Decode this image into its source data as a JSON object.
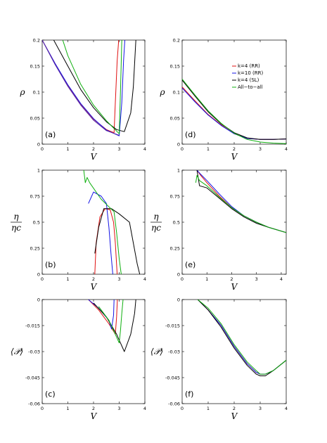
{
  "colors": {
    "red": "#e01010",
    "blue": "#1414e6",
    "black": "#000000",
    "green": "#10b010"
  },
  "legend": [
    {
      "label": "k=4 (RR)",
      "color": "#e01010"
    },
    {
      "label": "k=10 (RR)",
      "color": "#1414e6"
    },
    {
      "label": "k=4 (SL)",
      "color": "#000000"
    },
    {
      "label": "All−to−all",
      "color": "#10b010"
    }
  ],
  "chart_data": [
    {
      "type": "line",
      "panel_label": "(a)",
      "xlabel": "V",
      "ylabel": "ρ",
      "xlim": [
        0,
        4
      ],
      "ylim": [
        0,
        0.2
      ],
      "xticks": [
        "0",
        "1",
        "2",
        "3",
        "4"
      ],
      "yticks": [
        "0",
        "0.05",
        "0.1",
        "0.15",
        "0.2"
      ],
      "series": [
        {
          "color": "#e01010",
          "x": [
            0,
            0.5,
            1,
            1.5,
            2,
            2.5,
            2.8,
            2.85,
            2.92,
            2.98
          ],
          "y": [
            0.2,
            0.155,
            0.113,
            0.077,
            0.048,
            0.028,
            0.022,
            0.08,
            0.16,
            0.2
          ]
        },
        {
          "color": "#1414e6",
          "x": [
            0,
            0.5,
            1,
            1.5,
            2,
            2.5,
            3.0,
            3.1,
            3.17,
            3.22
          ],
          "y": [
            0.2,
            0.155,
            0.114,
            0.078,
            0.049,
            0.027,
            0.016,
            0.08,
            0.16,
            0.2
          ]
        },
        {
          "color": "#000000",
          "x": [
            0.45,
            1,
            1.5,
            2,
            2.5,
            2.9,
            3.2,
            3.45,
            3.55,
            3.65
          ],
          "y": [
            0.2,
            0.15,
            0.105,
            0.07,
            0.043,
            0.028,
            0.024,
            0.06,
            0.11,
            0.2
          ]
        },
        {
          "color": "#10b010",
          "x": [
            0.8,
            1,
            1.5,
            2,
            2.5,
            2.8,
            3.0,
            3.05,
            3.1
          ],
          "y": [
            0.2,
            0.17,
            0.115,
            0.075,
            0.045,
            0.03,
            0.02,
            0.1,
            0.2
          ]
        },
        {
          "color": "#5a2aa8",
          "x": [
            0,
            0.5,
            1,
            1.5,
            2,
            2.5,
            3.0
          ],
          "y": [
            0.2,
            0.153,
            0.111,
            0.075,
            0.046,
            0.026,
            0.017
          ]
        }
      ]
    },
    {
      "type": "line",
      "panel_label": "(d)",
      "xlabel": "V",
      "ylabel": "ρ",
      "xlim": [
        0,
        4
      ],
      "ylim": [
        0,
        0.2
      ],
      "xticks": [
        "0",
        "1",
        "2",
        "3",
        "4"
      ],
      "yticks": [
        "0",
        "0.05",
        "0.1",
        "0.15",
        "0.2"
      ],
      "series": [
        {
          "color": "#e01010",
          "x": [
            0,
            0.5,
            1,
            1.5,
            2,
            2.5,
            3,
            3.5,
            4
          ],
          "y": [
            0.11,
            0.083,
            0.057,
            0.037,
            0.02,
            0.011,
            0.009,
            0.009,
            0.01
          ]
        },
        {
          "color": "#1414e6",
          "x": [
            0,
            0.5,
            1,
            1.5,
            2,
            2.5,
            3,
            3.5,
            4
          ],
          "y": [
            0.108,
            0.081,
            0.056,
            0.036,
            0.02,
            0.011,
            0.009,
            0.009,
            0.01
          ]
        },
        {
          "color": "#000000",
          "x": [
            0,
            0.5,
            1,
            1.5,
            2,
            2.5,
            3,
            3.5,
            4
          ],
          "y": [
            0.123,
            0.092,
            0.062,
            0.039,
            0.022,
            0.012,
            0.009,
            0.009,
            0.01
          ]
        },
        {
          "color": "#10b010",
          "x": [
            0,
            0.5,
            1,
            1.5,
            2,
            2.5,
            3,
            3.5,
            4
          ],
          "y": [
            0.125,
            0.094,
            0.064,
            0.04,
            0.021,
            0.009,
            0.004,
            0.002,
            0.001
          ]
        }
      ]
    },
    {
      "type": "line",
      "panel_label": "(b)",
      "xlabel": "V",
      "ylabel": "η / ηc",
      "xlim": [
        0,
        4
      ],
      "ylim": [
        0,
        1
      ],
      "xticks": [
        "0",
        "1",
        "2",
        "3",
        "4"
      ],
      "yticks": [
        "0",
        "0.25",
        "0.5",
        "0.75",
        "1"
      ],
      "series": [
        {
          "color": "#e01010",
          "x": [
            2.05,
            2.1,
            2.25,
            2.45,
            2.65,
            2.78,
            2.85,
            2.92
          ],
          "y": [
            0,
            0.3,
            0.55,
            0.63,
            0.62,
            0.5,
            0.3,
            0
          ]
        },
        {
          "color": "#1414e6",
          "x": [
            1.8,
            2.0,
            2.3,
            2.5,
            2.6,
            2.68,
            2.75
          ],
          "y": [
            0.68,
            0.79,
            0.75,
            0.68,
            0.45,
            0.2,
            0
          ]
        },
        {
          "color": "#000000",
          "x": [
            2.05,
            2.2,
            2.4,
            2.7,
            3.0,
            3.4,
            3.55,
            3.7,
            3.8
          ],
          "y": [
            0.2,
            0.45,
            0.63,
            0.63,
            0.58,
            0.5,
            0.3,
            0.1,
            0
          ]
        },
        {
          "color": "#10b010",
          "x": [
            1.62,
            1.68,
            1.75,
            1.85,
            2.3,
            2.8,
            2.9,
            3.0,
            3.08
          ],
          "y": [
            1.0,
            0.88,
            0.93,
            0.88,
            0.72,
            0.6,
            0.4,
            0.15,
            0
          ]
        }
      ]
    },
    {
      "type": "line",
      "panel_label": "(e)",
      "xlabel": "V",
      "ylabel": "η / ηc",
      "xlim": [
        0,
        4.2
      ],
      "ylim": [
        0,
        1
      ],
      "xticks": [
        "0",
        "1",
        "2",
        "3",
        "4"
      ],
      "yticks": [
        "0",
        "0.25",
        "0.5",
        "0.75",
        "1"
      ],
      "series": [
        {
          "color": "#e01010",
          "x": [
            0.6,
            0.75,
            1,
            1.5,
            2,
            2.5,
            3,
            3.5,
            4.2
          ],
          "y": [
            1.0,
            0.95,
            0.88,
            0.75,
            0.64,
            0.56,
            0.5,
            0.45,
            0.4
          ]
        },
        {
          "color": "#1414e6",
          "x": [
            0.6,
            0.75,
            1,
            1.5,
            2,
            2.5,
            3,
            3.5,
            4.2
          ],
          "y": [
            1.0,
            0.96,
            0.9,
            0.77,
            0.65,
            0.56,
            0.5,
            0.45,
            0.4
          ]
        },
        {
          "color": "#000000",
          "x": [
            0.6,
            0.7,
            1,
            1.5,
            2,
            2.5,
            3,
            3.5,
            4.2
          ],
          "y": [
            1.0,
            0.85,
            0.83,
            0.73,
            0.63,
            0.55,
            0.49,
            0.45,
            0.4
          ]
        },
        {
          "color": "#10b010",
          "x": [
            0.55,
            0.6,
            0.7,
            1,
            1.5,
            2,
            2.5,
            3,
            3.5,
            4.2
          ],
          "y": [
            0.88,
            0.95,
            0.9,
            0.85,
            0.74,
            0.64,
            0.56,
            0.5,
            0.45,
            0.4
          ]
        }
      ]
    },
    {
      "type": "line",
      "panel_label": "(c)",
      "xlabel": "V",
      "ylabel": "⟨𝒫⟩",
      "xlim": [
        0,
        4
      ],
      "ylim": [
        -0.06,
        0
      ],
      "xticks": [
        "0",
        "1",
        "2",
        "3",
        "4"
      ],
      "yticks": [
        "-0.06",
        "-0.045",
        "-0.03",
        "-0.015",
        "0"
      ],
      "series": [
        {
          "color": "#e01010",
          "x": [
            1.8,
            2.2,
            2.6,
            2.85,
            2.9,
            2.93
          ],
          "y": [
            0,
            -0.006,
            -0.014,
            -0.02,
            -0.01,
            0
          ]
        },
        {
          "color": "#1414e6",
          "x": [
            1.8,
            2.2,
            2.6,
            2.7,
            2.78,
            2.8
          ],
          "y": [
            0,
            -0.005,
            -0.012,
            -0.017,
            -0.009,
            0
          ]
        },
        {
          "color": "#000000",
          "x": [
            2.0,
            2.5,
            2.9,
            3.2,
            3.45,
            3.6,
            3.65
          ],
          "y": [
            -0.002,
            -0.01,
            -0.02,
            -0.03,
            -0.02,
            -0.008,
            0
          ]
        },
        {
          "color": "#10b010",
          "x": [
            2.2,
            2.6,
            3.0,
            3.05,
            3.1,
            3.15
          ],
          "y": [
            -0.004,
            -0.012,
            -0.025,
            -0.018,
            -0.008,
            0
          ]
        }
      ]
    },
    {
      "type": "line",
      "panel_label": "(f)",
      "xlabel": "V",
      "ylabel": "⟨𝒫⟩",
      "xlim": [
        0,
        4
      ],
      "ylim": [
        -0.06,
        0
      ],
      "xticks": [
        "0",
        "1",
        "2",
        "3",
        "4"
      ],
      "yticks": [
        "-0.06",
        "-0.045",
        "-0.03",
        "-0.015",
        "0"
      ],
      "series": [
        {
          "color": "#e01010",
          "x": [
            0.6,
            1,
            1.5,
            2,
            2.5,
            2.85,
            3.0,
            3.2,
            3.5,
            4.0
          ],
          "y": [
            0,
            -0.006,
            -0.015,
            -0.027,
            -0.037,
            -0.042,
            -0.043,
            -0.043,
            -0.041,
            -0.035
          ]
        },
        {
          "color": "#1414e6",
          "x": [
            0.6,
            1,
            1.5,
            2,
            2.5,
            2.85,
            3.0,
            3.2,
            3.5,
            4.0
          ],
          "y": [
            0,
            -0.006,
            -0.015,
            -0.027,
            -0.037,
            -0.042,
            -0.043,
            -0.043,
            -0.041,
            -0.035
          ]
        },
        {
          "color": "#000000",
          "x": [
            0.6,
            1,
            1.5,
            2,
            2.5,
            2.85,
            3.0,
            3.2,
            3.5,
            4.0
          ],
          "y": [
            0,
            -0.006,
            -0.016,
            -0.028,
            -0.038,
            -0.043,
            -0.044,
            -0.044,
            -0.041,
            -0.035
          ]
        },
        {
          "color": "#10b010",
          "x": [
            0.6,
            1,
            1.5,
            2,
            2.5,
            2.85,
            3.0,
            3.2,
            3.5,
            4.0
          ],
          "y": [
            0,
            -0.005,
            -0.014,
            -0.026,
            -0.036,
            -0.041,
            -0.043,
            -0.043,
            -0.041,
            -0.035
          ]
        }
      ]
    }
  ]
}
